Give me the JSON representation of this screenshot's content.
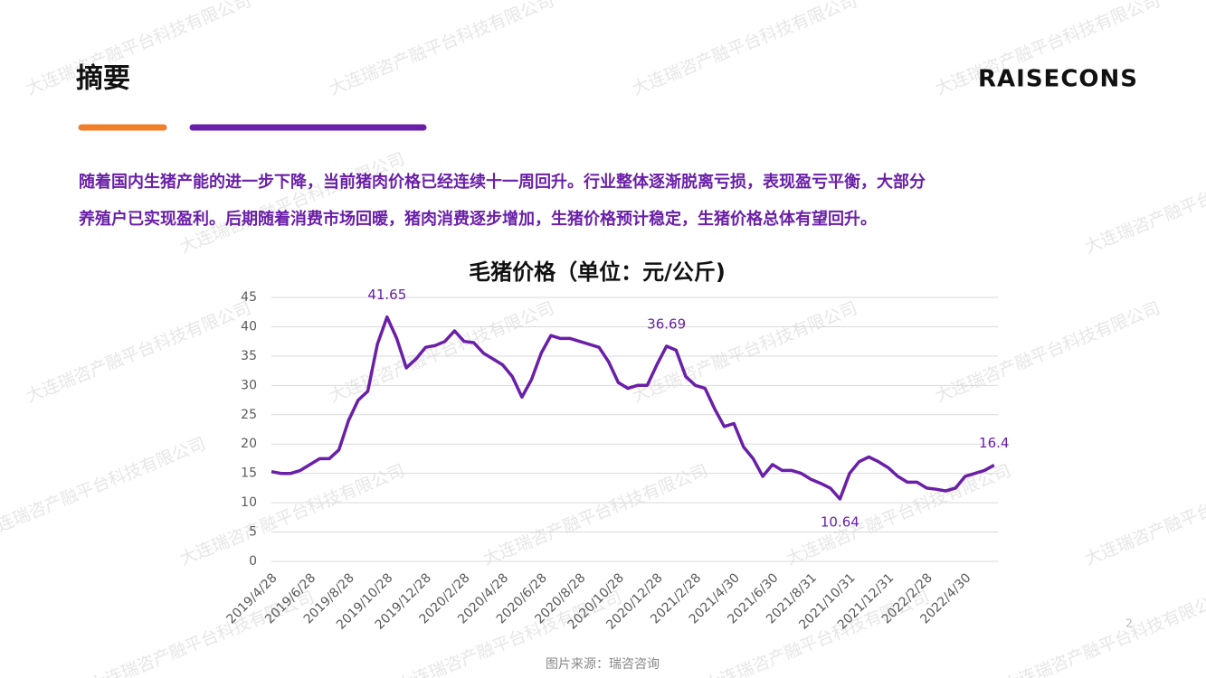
{
  "watermark": "大连瑞咨产融平台科技有限公司",
  "header": {
    "title": "摘要",
    "logo": "RAISECONS"
  },
  "summary": [
    "随着国内生猪产能的进一步下降，当前猪肉价格已经连续十一周回升。行业整体逐渐脱离亏损，表现盈亏平衡，大部分",
    "养殖户已实现盈利。后期随着消费市场回暖，猪肉消费逐步增加，生猪价格预计稳定，生猪价格总体有望回升。"
  ],
  "chart_data": {
    "type": "line",
    "title": "毛猪价格（单位：元/公斤)",
    "categories": [
      "2019/4/28",
      null,
      null,
      null,
      "2019/6/28",
      null,
      null,
      null,
      "2019/8/28",
      null,
      null,
      null,
      "2019/10/28",
      null,
      null,
      null,
      "2019/12/28",
      null,
      null,
      null,
      "2020/2/28",
      null,
      null,
      null,
      "2020/4/28",
      null,
      null,
      null,
      "2020/6/28",
      null,
      null,
      null,
      "2020/8/28",
      null,
      null,
      null,
      "2020/10/28",
      null,
      null,
      null,
      "2020/12/28",
      null,
      null,
      null,
      "2021/2/28",
      null,
      null,
      null,
      "2021/4/30",
      null,
      null,
      null,
      "2021/6/30",
      null,
      null,
      null,
      "2021/8/31",
      null,
      null,
      null,
      "2021/10/31",
      null,
      null,
      null,
      "2021/12/31",
      null,
      null,
      null,
      "2022/2/28",
      null,
      null,
      null,
      "2022/4/30",
      null,
      null,
      null
    ],
    "series": [
      {
        "name": "毛猪价格",
        "color": "#6a1fa8",
        "values": [
          15.3,
          15.0,
          15.0,
          15.5,
          16.5,
          17.5,
          17.5,
          19,
          24,
          27.5,
          29,
          37,
          41.65,
          38,
          33,
          34.5,
          36.5,
          36.8,
          37.5,
          39.3,
          37.5,
          37.3,
          35.5,
          34.5,
          33.5,
          31.5,
          28,
          31,
          35.5,
          38.5,
          38,
          38,
          37.5,
          37,
          36.5,
          34,
          30.5,
          29.5,
          30,
          30,
          33.5,
          36.69,
          36,
          31.5,
          30,
          29.5,
          26,
          23,
          23.5,
          19.5,
          17.5,
          14.5,
          16.5,
          15.5,
          15.5,
          15,
          14,
          13.3,
          12.5,
          10.64,
          15,
          17,
          17.8,
          17,
          16,
          14.5,
          13.5,
          13.5,
          12.5,
          12.3,
          12,
          12.5,
          14.5,
          15,
          15.5,
          16.4
        ],
        "value_labels": [
          null,
          null,
          null,
          null,
          null,
          null,
          null,
          null,
          null,
          null,
          null,
          null,
          "41.65",
          null,
          null,
          null,
          null,
          null,
          null,
          null,
          null,
          null,
          null,
          null,
          null,
          null,
          null,
          null,
          null,
          null,
          null,
          null,
          null,
          null,
          null,
          null,
          null,
          null,
          null,
          null,
          null,
          "36.69",
          null,
          null,
          null,
          null,
          null,
          null,
          null,
          null,
          null,
          null,
          null,
          null,
          null,
          null,
          null,
          null,
          null,
          "10.64",
          null,
          null,
          null,
          null,
          null,
          null,
          null,
          null,
          null,
          null,
          null,
          null,
          null,
          null,
          null,
          "16.4"
        ]
      }
    ],
    "ylim": [
      0,
      45
    ],
    "yticks": [
      0,
      5,
      10,
      15,
      20,
      25,
      30,
      35,
      40,
      45
    ],
    "grid": true
  },
  "footer": {
    "source": "图片来源：瑞咨咨询",
    "page": "2"
  }
}
